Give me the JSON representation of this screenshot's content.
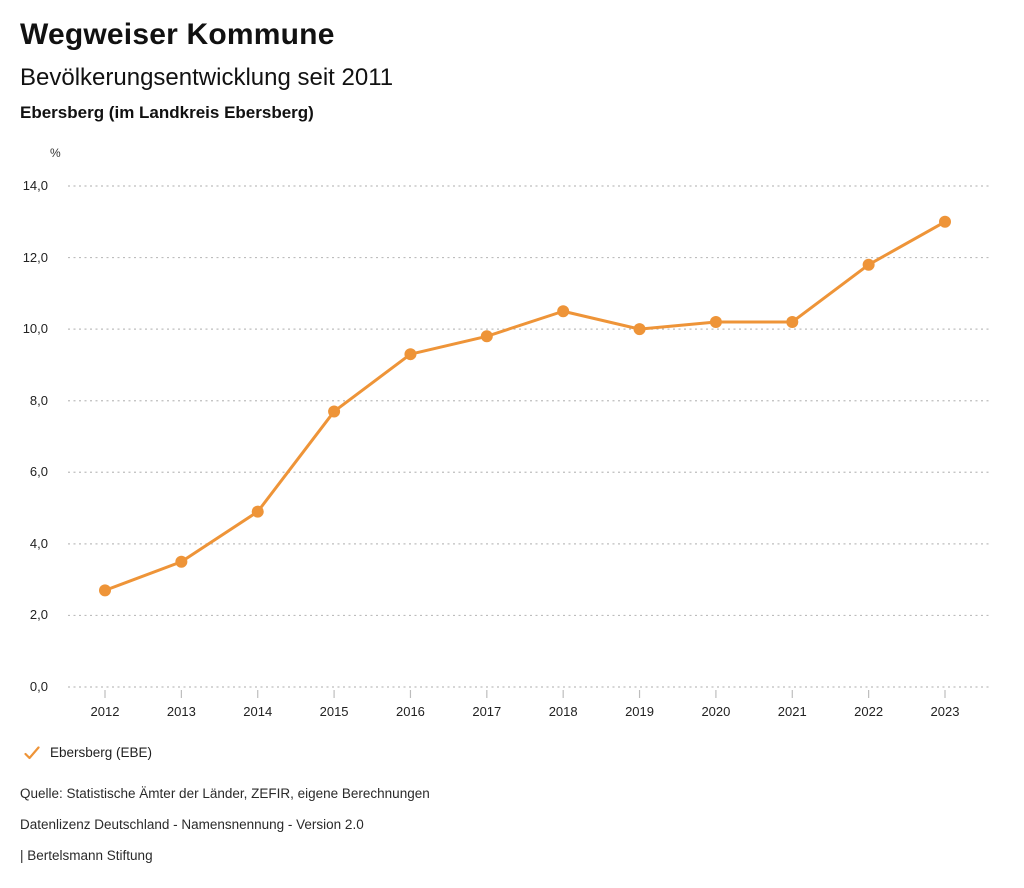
{
  "header": {
    "title": "Wegweiser Kommune",
    "subtitle": "Bevölkerungsentwicklung seit 2011",
    "region": "Ebersberg (im Landkreis Ebersberg)"
  },
  "chart_data": {
    "type": "line",
    "title": "Bevölkerungsentwicklung seit 2011",
    "region": "Ebersberg (im Landkreis Ebersberg)",
    "unit_label": "%",
    "categories": [
      "2012",
      "2013",
      "2014",
      "2015",
      "2016",
      "2017",
      "2018",
      "2019",
      "2020",
      "2021",
      "2022",
      "2023"
    ],
    "series": [
      {
        "name": "Ebersberg (EBE)",
        "color": "#EE9438",
        "values": [
          2.7,
          3.5,
          4.9,
          7.7,
          9.3,
          9.8,
          10.5,
          10.0,
          10.2,
          10.2,
          11.8,
          13.0
        ]
      }
    ],
    "ylim": [
      0,
      14
    ],
    "yticks": [
      {
        "value": 0,
        "label": "0,0"
      },
      {
        "value": 2,
        "label": "2,0"
      },
      {
        "value": 4,
        "label": "4,0"
      },
      {
        "value": 6,
        "label": "6,0"
      },
      {
        "value": 8,
        "label": "8,0"
      },
      {
        "value": 10,
        "label": "10,0"
      },
      {
        "value": 12,
        "label": "12,0"
      },
      {
        "value": 14,
        "label": "14,0"
      }
    ],
    "grid": "horizontal-dotted",
    "legend_position": "bottom-left"
  },
  "legend": {
    "items": [
      {
        "label": "Ebersberg (EBE)",
        "icon": "check-icon",
        "color": "#EE9438"
      }
    ]
  },
  "footer": {
    "source": "Quelle: Statistische Ämter der Länder, ZEFIR, eigene Berechnungen",
    "license": "Datenlizenz Deutschland - Namensnennung - Version 2.0",
    "publisher": "| Bertelsmann Stiftung"
  },
  "colors": {
    "accent": "#EE9438",
    "grid": "#BDBDBD",
    "axis_tick": "#BDBDBD",
    "text": "#1A1A1A"
  }
}
